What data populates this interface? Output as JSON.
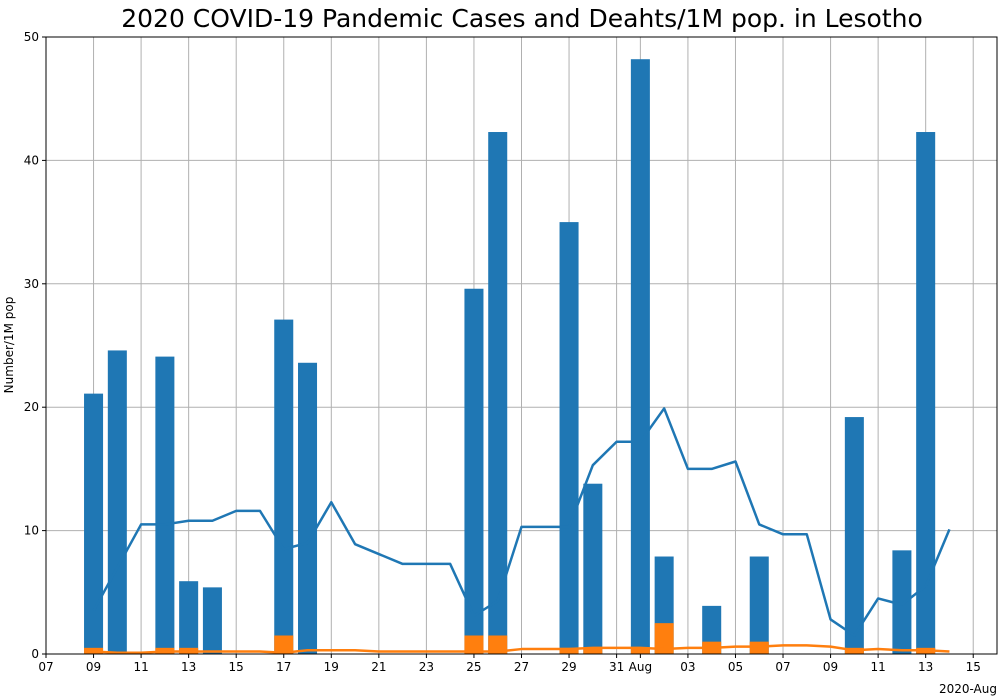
{
  "chart_data": {
    "type": "bar",
    "title": "2020 COVID-19 Pandemic Cases and Deahts/1M pop. in Lesotho",
    "ylabel": "Number/1M pop",
    "xlabel": "",
    "x_offset_label": "2020-Aug",
    "ylim": [
      0,
      50
    ],
    "yticks": [
      0,
      10,
      20,
      30,
      40,
      50
    ],
    "xlim": [
      "2020-07-07",
      "2020-08-16"
    ],
    "xticks": [
      {
        "date": "2020-07-07",
        "label": "07"
      },
      {
        "date": "2020-07-09",
        "label": "09"
      },
      {
        "date": "2020-07-11",
        "label": "11"
      },
      {
        "date": "2020-07-13",
        "label": "13"
      },
      {
        "date": "2020-07-15",
        "label": "15"
      },
      {
        "date": "2020-07-17",
        "label": "17"
      },
      {
        "date": "2020-07-19",
        "label": "19"
      },
      {
        "date": "2020-07-21",
        "label": "21"
      },
      {
        "date": "2020-07-23",
        "label": "23"
      },
      {
        "date": "2020-07-25",
        "label": "25"
      },
      {
        "date": "2020-07-27",
        "label": "27"
      },
      {
        "date": "2020-07-29",
        "label": "29"
      },
      {
        "date": "2020-07-31",
        "label": "31"
      },
      {
        "date": "2020-08-01",
        "label": "Aug"
      },
      {
        "date": "2020-08-03",
        "label": "03"
      },
      {
        "date": "2020-08-05",
        "label": "05"
      },
      {
        "date": "2020-08-07",
        "label": "07"
      },
      {
        "date": "2020-08-09",
        "label": "09"
      },
      {
        "date": "2020-08-11",
        "label": "11"
      },
      {
        "date": "2020-08-13",
        "label": "13"
      },
      {
        "date": "2020-08-15",
        "label": "15"
      }
    ],
    "grid": true,
    "colors": {
      "cases": "#1f77b4",
      "deaths": "#ff7f0e"
    },
    "series": [
      {
        "kind": "bar",
        "color": "#1f77b4",
        "points": [
          {
            "x": "2020-07-09",
            "y": 21.1
          },
          {
            "x": "2020-07-10",
            "y": 24.6
          },
          {
            "x": "2020-07-12",
            "y": 24.1
          },
          {
            "x": "2020-07-13",
            "y": 5.9
          },
          {
            "x": "2020-07-14",
            "y": 5.4
          },
          {
            "x": "2020-07-17",
            "y": 27.1
          },
          {
            "x": "2020-07-18",
            "y": 23.6
          },
          {
            "x": "2020-07-25",
            "y": 29.6
          },
          {
            "x": "2020-07-26",
            "y": 42.3
          },
          {
            "x": "2020-07-29",
            "y": 35.0
          },
          {
            "x": "2020-07-30",
            "y": 13.8
          },
          {
            "x": "2020-08-01",
            "y": 48.2
          },
          {
            "x": "2020-08-02",
            "y": 7.9
          },
          {
            "x": "2020-08-04",
            "y": 3.9
          },
          {
            "x": "2020-08-06",
            "y": 7.9
          },
          {
            "x": "2020-08-10",
            "y": 19.2
          },
          {
            "x": "2020-08-12",
            "y": 8.4
          },
          {
            "x": "2020-08-13",
            "y": 42.3
          }
        ]
      },
      {
        "kind": "bar",
        "color": "#ff7f0e",
        "points": [
          {
            "x": "2020-07-09",
            "y": 0.5
          },
          {
            "x": "2020-07-12",
            "y": 0.5
          },
          {
            "x": "2020-07-13",
            "y": 0.5
          },
          {
            "x": "2020-07-17",
            "y": 1.5
          },
          {
            "x": "2020-07-25",
            "y": 1.5
          },
          {
            "x": "2020-07-26",
            "y": 1.5
          },
          {
            "x": "2020-07-29",
            "y": 0.5
          },
          {
            "x": "2020-07-30",
            "y": 0.5
          },
          {
            "x": "2020-08-01",
            "y": 0.5
          },
          {
            "x": "2020-08-02",
            "y": 2.5
          },
          {
            "x": "2020-08-04",
            "y": 1.0
          },
          {
            "x": "2020-08-06",
            "y": 1.0
          },
          {
            "x": "2020-08-10",
            "y": 0.5
          },
          {
            "x": "2020-08-13",
            "y": 0.5
          }
        ]
      },
      {
        "kind": "line",
        "color": "#1f77b4",
        "points": [
          {
            "x": "2020-07-09",
            "y": 3.5
          },
          {
            "x": "2020-07-10",
            "y": 7.0
          },
          {
            "x": "2020-07-11",
            "y": 10.5
          },
          {
            "x": "2020-07-12",
            "y": 10.5
          },
          {
            "x": "2020-07-13",
            "y": 10.8
          },
          {
            "x": "2020-07-14",
            "y": 10.8
          },
          {
            "x": "2020-07-15",
            "y": 11.6
          },
          {
            "x": "2020-07-16",
            "y": 11.6
          },
          {
            "x": "2020-07-17",
            "y": 8.5
          },
          {
            "x": "2020-07-18",
            "y": 9.0
          },
          {
            "x": "2020-07-19",
            "y": 12.3
          },
          {
            "x": "2020-07-20",
            "y": 8.9
          },
          {
            "x": "2020-07-21",
            "y": 8.1
          },
          {
            "x": "2020-07-22",
            "y": 7.3
          },
          {
            "x": "2020-07-23",
            "y": 7.3
          },
          {
            "x": "2020-07-24",
            "y": 7.3
          },
          {
            "x": "2020-07-25",
            "y": 3.1
          },
          {
            "x": "2020-07-26",
            "y": 4.3
          },
          {
            "x": "2020-07-27",
            "y": 10.3
          },
          {
            "x": "2020-07-28",
            "y": 10.3
          },
          {
            "x": "2020-07-29",
            "y": 10.3
          },
          {
            "x": "2020-07-30",
            "y": 15.3
          },
          {
            "x": "2020-07-31",
            "y": 17.2
          },
          {
            "x": "2020-08-01",
            "y": 17.2
          },
          {
            "x": "2020-08-02",
            "y": 19.9
          },
          {
            "x": "2020-08-03",
            "y": 15.0
          },
          {
            "x": "2020-08-04",
            "y": 15.0
          },
          {
            "x": "2020-08-05",
            "y": 15.6
          },
          {
            "x": "2020-08-06",
            "y": 10.5
          },
          {
            "x": "2020-08-07",
            "y": 9.7
          },
          {
            "x": "2020-08-08",
            "y": 9.7
          },
          {
            "x": "2020-08-09",
            "y": 2.8
          },
          {
            "x": "2020-08-10",
            "y": 1.5
          },
          {
            "x": "2020-08-11",
            "y": 4.5
          },
          {
            "x": "2020-08-12",
            "y": 4.0
          },
          {
            "x": "2020-08-13",
            "y": 5.5
          },
          {
            "x": "2020-08-14",
            "y": 10.1
          }
        ]
      },
      {
        "kind": "line",
        "color": "#ff7f0e",
        "points": [
          {
            "x": "2020-07-09",
            "y": 0.2
          },
          {
            "x": "2020-07-10",
            "y": 0.1
          },
          {
            "x": "2020-07-11",
            "y": 0.1
          },
          {
            "x": "2020-07-12",
            "y": 0.2
          },
          {
            "x": "2020-07-13",
            "y": 0.2
          },
          {
            "x": "2020-07-14",
            "y": 0.2
          },
          {
            "x": "2020-07-15",
            "y": 0.2
          },
          {
            "x": "2020-07-16",
            "y": 0.2
          },
          {
            "x": "2020-07-17",
            "y": 0.1
          },
          {
            "x": "2020-07-18",
            "y": 0.3
          },
          {
            "x": "2020-07-19",
            "y": 0.3
          },
          {
            "x": "2020-07-20",
            "y": 0.3
          },
          {
            "x": "2020-07-21",
            "y": 0.2
          },
          {
            "x": "2020-07-22",
            "y": 0.2
          },
          {
            "x": "2020-07-23",
            "y": 0.2
          },
          {
            "x": "2020-07-24",
            "y": 0.2
          },
          {
            "x": "2020-07-25",
            "y": 0.2
          },
          {
            "x": "2020-07-26",
            "y": 0.2
          },
          {
            "x": "2020-07-27",
            "y": 0.4
          },
          {
            "x": "2020-07-28",
            "y": 0.4
          },
          {
            "x": "2020-07-29",
            "y": 0.4
          },
          {
            "x": "2020-07-30",
            "y": 0.5
          },
          {
            "x": "2020-07-31",
            "y": 0.5
          },
          {
            "x": "2020-08-01",
            "y": 0.5
          },
          {
            "x": "2020-08-02",
            "y": 0.4
          },
          {
            "x": "2020-08-03",
            "y": 0.5
          },
          {
            "x": "2020-08-04",
            "y": 0.5
          },
          {
            "x": "2020-08-05",
            "y": 0.6
          },
          {
            "x": "2020-08-06",
            "y": 0.6
          },
          {
            "x": "2020-08-07",
            "y": 0.7
          },
          {
            "x": "2020-08-08",
            "y": 0.7
          },
          {
            "x": "2020-08-09",
            "y": 0.6
          },
          {
            "x": "2020-08-10",
            "y": 0.3
          },
          {
            "x": "2020-08-11",
            "y": 0.4
          },
          {
            "x": "2020-08-12",
            "y": 0.3
          },
          {
            "x": "2020-08-13",
            "y": 0.3
          },
          {
            "x": "2020-08-14",
            "y": 0.2
          }
        ]
      }
    ]
  }
}
